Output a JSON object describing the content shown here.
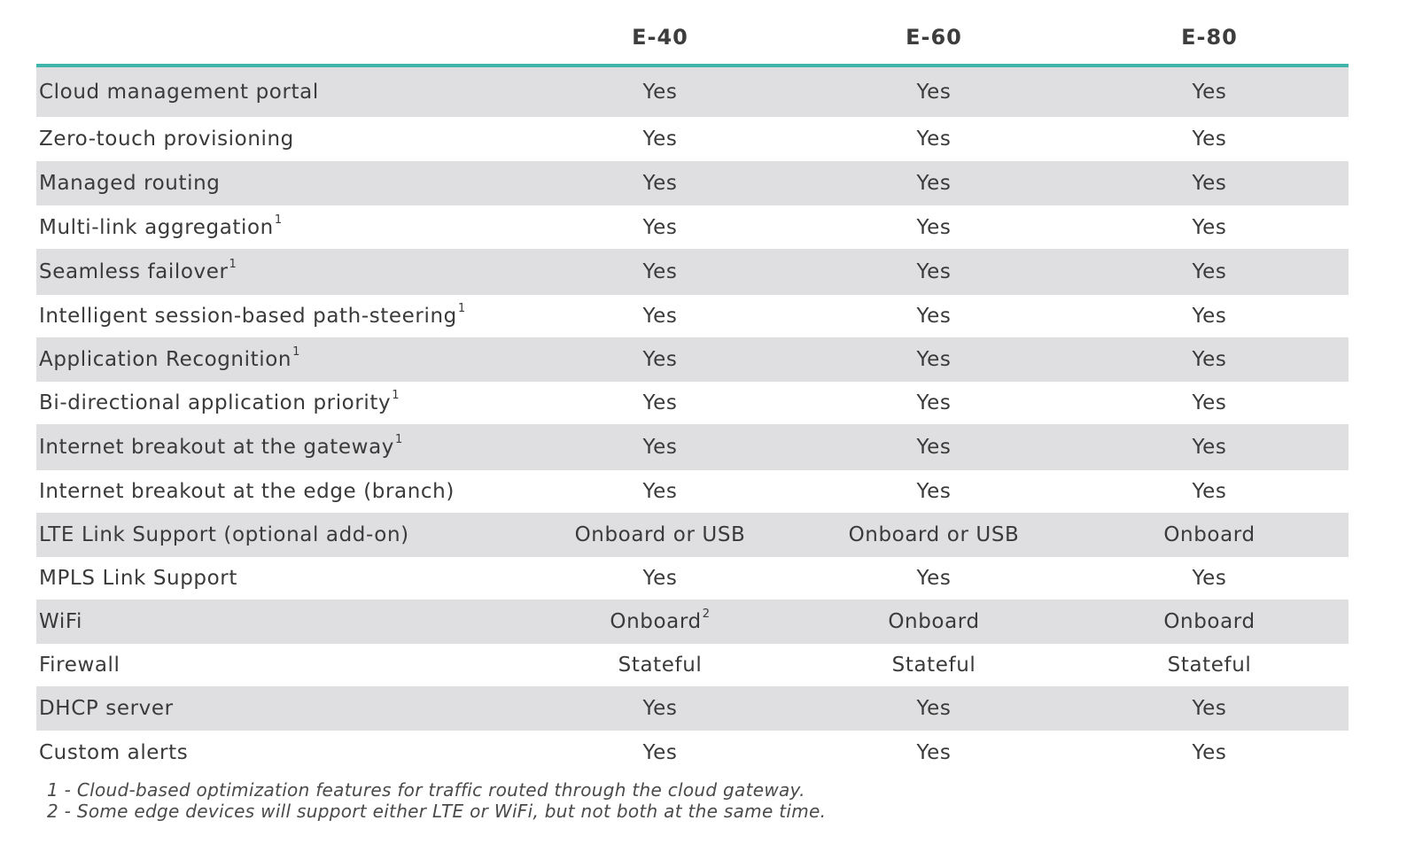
{
  "columns": [
    "E-40",
    "E-60",
    "E-80"
  ],
  "rows": [
    {
      "feature": "Cloud management portal",
      "sup": "",
      "values": [
        {
          "text": "Yes",
          "sup": ""
        },
        {
          "text": "Yes",
          "sup": ""
        },
        {
          "text": "Yes",
          "sup": ""
        }
      ]
    },
    {
      "feature": "Zero-touch provisioning",
      "sup": "",
      "values": [
        {
          "text": "Yes",
          "sup": ""
        },
        {
          "text": "Yes",
          "sup": ""
        },
        {
          "text": "Yes",
          "sup": ""
        }
      ]
    },
    {
      "feature": "Managed routing",
      "sup": "",
      "values": [
        {
          "text": "Yes",
          "sup": ""
        },
        {
          "text": "Yes",
          "sup": ""
        },
        {
          "text": "Yes",
          "sup": ""
        }
      ]
    },
    {
      "feature": "Multi-link aggregation",
      "sup": "1",
      "values": [
        {
          "text": "Yes",
          "sup": ""
        },
        {
          "text": "Yes",
          "sup": ""
        },
        {
          "text": "Yes",
          "sup": ""
        }
      ]
    },
    {
      "feature": "Seamless failover",
      "sup": "1",
      "values": [
        {
          "text": "Yes",
          "sup": ""
        },
        {
          "text": "Yes",
          "sup": ""
        },
        {
          "text": "Yes",
          "sup": ""
        }
      ]
    },
    {
      "feature": "Intelligent session-based path-steering",
      "sup": "1",
      "values": [
        {
          "text": "Yes",
          "sup": ""
        },
        {
          "text": "Yes",
          "sup": ""
        },
        {
          "text": "Yes",
          "sup": ""
        }
      ]
    },
    {
      "feature": "Application Recognition",
      "sup": "1",
      "values": [
        {
          "text": "Yes",
          "sup": ""
        },
        {
          "text": "Yes",
          "sup": ""
        },
        {
          "text": "Yes",
          "sup": ""
        }
      ]
    },
    {
      "feature": "Bi-directional application priority",
      "sup": "1",
      "values": [
        {
          "text": "Yes",
          "sup": ""
        },
        {
          "text": "Yes",
          "sup": ""
        },
        {
          "text": "Yes",
          "sup": ""
        }
      ]
    },
    {
      "feature": "Internet breakout at the gateway",
      "sup": "1",
      "values": [
        {
          "text": "Yes",
          "sup": ""
        },
        {
          "text": "Yes",
          "sup": ""
        },
        {
          "text": "Yes",
          "sup": ""
        }
      ]
    },
    {
      "feature": "Internet breakout at the edge (branch)",
      "sup": "",
      "values": [
        {
          "text": "Yes",
          "sup": ""
        },
        {
          "text": "Yes",
          "sup": ""
        },
        {
          "text": "Yes",
          "sup": ""
        }
      ]
    },
    {
      "feature": "LTE Link Support (optional add-on)",
      "sup": "",
      "values": [
        {
          "text": "Onboard or USB",
          "sup": ""
        },
        {
          "text": "Onboard or USB",
          "sup": ""
        },
        {
          "text": "Onboard",
          "sup": ""
        }
      ]
    },
    {
      "feature": "MPLS Link Support",
      "sup": "",
      "values": [
        {
          "text": "Yes",
          "sup": ""
        },
        {
          "text": "Yes",
          "sup": ""
        },
        {
          "text": "Yes",
          "sup": ""
        }
      ]
    },
    {
      "feature": "WiFi",
      "sup": "",
      "values": [
        {
          "text": "Onboard",
          "sup": "2"
        },
        {
          "text": "Onboard",
          "sup": ""
        },
        {
          "text": "Onboard",
          "sup": ""
        }
      ]
    },
    {
      "feature": "Firewall",
      "sup": "",
      "values": [
        {
          "text": "Stateful",
          "sup": ""
        },
        {
          "text": "Stateful",
          "sup": ""
        },
        {
          "text": "Stateful",
          "sup": ""
        }
      ]
    },
    {
      "feature": "DHCP server",
      "sup": "",
      "values": [
        {
          "text": "Yes",
          "sup": ""
        },
        {
          "text": "Yes",
          "sup": ""
        },
        {
          "text": "Yes",
          "sup": ""
        }
      ]
    },
    {
      "feature": "Custom alerts",
      "sup": "",
      "values": [
        {
          "text": "Yes",
          "sup": ""
        },
        {
          "text": "Yes",
          "sup": ""
        },
        {
          "text": "Yes",
          "sup": ""
        }
      ]
    }
  ],
  "footnotes": [
    "1 - Cloud-based optimization features for traffic routed through the cloud gateway.",
    "2 - Some edge devices will support either LTE or WiFi, but not both at the same time."
  ],
  "colors": {
    "header_rule": "#40b3aa",
    "shaded_row": "#dfdfe1",
    "text": "#3a3a3a"
  }
}
